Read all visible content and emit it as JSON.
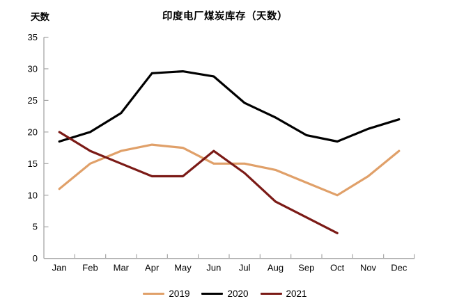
{
  "chart_data": {
    "type": "line",
    "title": "印度电厂煤炭库存（天数）",
    "ylabel": "天数",
    "categories": [
      "Jan",
      "Feb",
      "Mar",
      "Apr",
      "May",
      "Jun",
      "Jul",
      "Aug",
      "Sep",
      "Oct",
      "Nov",
      "Dec"
    ],
    "series": [
      {
        "name": "2019",
        "color": "#E0A069",
        "values": [
          11,
          15,
          17,
          18,
          17.5,
          15,
          15,
          14,
          12,
          10,
          13,
          17
        ]
      },
      {
        "name": "2020",
        "color": "#000000",
        "values": [
          18.5,
          20,
          23,
          29.3,
          29.6,
          28.8,
          24.6,
          22.3,
          19.5,
          18.5,
          20.5,
          22
        ]
      },
      {
        "name": "2021",
        "color": "#7B1A16",
        "values": [
          20,
          17,
          15,
          13,
          13,
          17,
          13.5,
          9,
          6.5,
          4,
          null,
          null
        ]
      }
    ],
    "ylim": [
      0,
      35
    ],
    "ytick_step": 5,
    "yticklabels": [
      "0",
      "5",
      "10",
      "15",
      "20",
      "25",
      "30",
      "35"
    ],
    "grid": false,
    "legend_position": "bottom",
    "axis_color": "#A6A6A6"
  }
}
